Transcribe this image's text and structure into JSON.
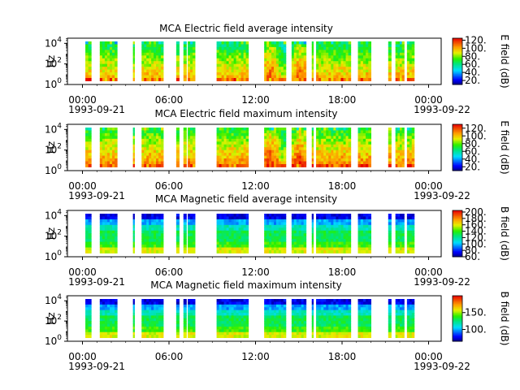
{
  "chart_data": [
    {
      "type": "heatmap",
      "title": "MCA  Electric field average intensity",
      "ylabel": "Hz",
      "y_scale": "log",
      "y_ticks": [
        {
          "base": "10",
          "exp": "0"
        },
        {
          "base": "10",
          "exp": "2"
        },
        {
          "base": "10",
          "exp": "4"
        }
      ],
      "x_ticks": [
        "00:00",
        "06:00",
        "12:00",
        "18:00",
        "00:00"
      ],
      "x_start_label": "1993-09-21",
      "x_end_label": "1993-09-22",
      "colorbar_label": "E field (dB)",
      "colorbar_ticks": [
        "20.",
        "40.",
        "60.",
        "80.",
        "100.",
        "120."
      ],
      "colorbar_range": [
        10,
        125
      ],
      "segments_hours": [
        [
          0.2,
          0.6
        ],
        [
          1.2,
          2.4
        ],
        [
          3.5,
          3.6
        ],
        [
          4.1,
          5.6
        ],
        [
          6.5,
          6.7
        ],
        [
          7.0,
          7.2
        ],
        [
          7.3,
          7.8
        ],
        [
          9.3,
          11.5
        ],
        [
          12.6,
          14.1
        ],
        [
          14.5,
          15.5
        ],
        [
          15.9,
          16.0
        ],
        [
          16.2,
          18.6
        ],
        [
          19.1,
          20.0
        ],
        [
          21.2,
          21.4
        ],
        [
          21.7,
          22.3
        ],
        [
          22.5,
          23.0
        ]
      ],
      "style": "efield-avg"
    },
    {
      "type": "heatmap",
      "title": "MCA  Electric field maximum intensity",
      "ylabel": "Hz",
      "y_scale": "log",
      "y_ticks": [
        {
          "base": "10",
          "exp": "0"
        },
        {
          "base": "10",
          "exp": "2"
        },
        {
          "base": "10",
          "exp": "4"
        }
      ],
      "x_ticks": [
        "00:00",
        "06:00",
        "12:00",
        "18:00",
        "00:00"
      ],
      "x_start_label": "1993-09-21",
      "x_end_label": "1993-09-22",
      "colorbar_label": "E field (dB)",
      "colorbar_ticks": [
        "20.",
        "40.",
        "60.",
        "80.",
        "100.",
        "120."
      ],
      "colorbar_range": [
        10,
        130
      ],
      "segments_hours": [
        [
          0.2,
          0.6
        ],
        [
          1.2,
          2.4
        ],
        [
          3.5,
          3.6
        ],
        [
          4.1,
          5.6
        ],
        [
          6.5,
          6.7
        ],
        [
          7.0,
          7.2
        ],
        [
          7.3,
          7.8
        ],
        [
          9.3,
          11.5
        ],
        [
          12.6,
          14.1
        ],
        [
          14.5,
          15.5
        ],
        [
          15.9,
          16.0
        ],
        [
          16.2,
          18.6
        ],
        [
          19.1,
          20.0
        ],
        [
          21.2,
          21.4
        ],
        [
          21.7,
          22.3
        ],
        [
          22.5,
          23.0
        ]
      ],
      "style": "efield-max"
    },
    {
      "type": "heatmap",
      "title": "MCA  Magnetic field average intensity",
      "ylabel": "Hz",
      "y_scale": "log",
      "y_ticks": [
        {
          "base": "10",
          "exp": "0"
        },
        {
          "base": "10",
          "exp": "2"
        },
        {
          "base": "10",
          "exp": "4"
        }
      ],
      "x_ticks": [
        "00:00",
        "06:00",
        "12:00",
        "18:00",
        "00:00"
      ],
      "x_start_label": "1993-09-21",
      "x_end_label": "1993-09-22",
      "colorbar_label": "B field (dB)",
      "colorbar_ticks": [
        "60.",
        "80.",
        "100.",
        "120.",
        "140.",
        "160.",
        "180.",
        "200."
      ],
      "colorbar_range": [
        60,
        205
      ],
      "segments_hours": [
        [
          0.2,
          0.6
        ],
        [
          1.2,
          2.4
        ],
        [
          3.5,
          3.6
        ],
        [
          4.1,
          5.6
        ],
        [
          6.5,
          6.7
        ],
        [
          7.0,
          7.2
        ],
        [
          7.3,
          7.8
        ],
        [
          9.3,
          11.5
        ],
        [
          12.6,
          14.1
        ],
        [
          14.5,
          15.5
        ],
        [
          15.9,
          16.0
        ],
        [
          16.2,
          18.6
        ],
        [
          19.1,
          20.0
        ],
        [
          21.2,
          21.4
        ],
        [
          21.7,
          22.3
        ],
        [
          22.5,
          23.0
        ]
      ],
      "style": "bfield"
    },
    {
      "type": "heatmap",
      "title": "MCA  Magnetic field maximum intensity",
      "ylabel": "Hz",
      "y_scale": "log",
      "y_ticks": [
        {
          "base": "10",
          "exp": "0"
        },
        {
          "base": "10",
          "exp": "2"
        },
        {
          "base": "10",
          "exp": "4"
        }
      ],
      "x_ticks": [
        "00:00",
        "06:00",
        "12:00",
        "18:00",
        "00:00"
      ],
      "x_start_label": "1993-09-21",
      "x_end_label": "1993-09-22",
      "colorbar_label": "B field (dB)",
      "colorbar_ticks": [
        "100.",
        "150."
      ],
      "colorbar_range": [
        65,
        200
      ],
      "segments_hours": [
        [
          0.2,
          0.6
        ],
        [
          1.2,
          2.4
        ],
        [
          3.5,
          3.6
        ],
        [
          4.1,
          5.6
        ],
        [
          6.5,
          6.7
        ],
        [
          7.0,
          7.2
        ],
        [
          7.3,
          7.8
        ],
        [
          9.3,
          11.5
        ],
        [
          12.6,
          14.1
        ],
        [
          14.5,
          15.5
        ],
        [
          15.9,
          16.0
        ],
        [
          16.2,
          18.6
        ],
        [
          19.1,
          20.0
        ],
        [
          21.2,
          21.4
        ],
        [
          21.7,
          22.3
        ],
        [
          22.5,
          23.0
        ]
      ],
      "style": "bfield"
    }
  ]
}
